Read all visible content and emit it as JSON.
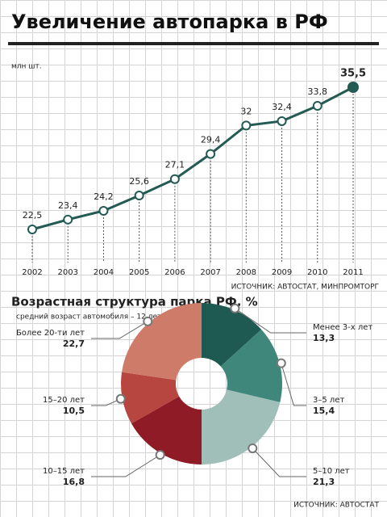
{
  "chart_data": [
    {
      "type": "line",
      "title": "Увеличение автопарка в РФ",
      "y_label": "млн шт.",
      "categories": [
        "2002",
        "2003",
        "2004",
        "2005",
        "2006",
        "2007",
        "2008",
        "2009",
        "2010",
        "2011"
      ],
      "values": [
        22.5,
        23.4,
        24.2,
        25.6,
        27.1,
        29.4,
        32,
        32.4,
        33.8,
        35.5
      ],
      "value_labels": [
        "22,5",
        "23,4",
        "24,2",
        "25,6",
        "27,1",
        "29,4",
        "32",
        "32,4",
        "33,8",
        "35,5"
      ],
      "color": "#235a53",
      "source": "ИСТОЧНИК: АВТОСТАТ, МИНПРОМТОРГ"
    },
    {
      "type": "pie",
      "title": "Возрастная структура парка РФ, %",
      "subtitle": "средний возраст автомобиля – 12 лет",
      "categories": [
        "Менее 3-х лет",
        "3–5 лет",
        "5–10 лет",
        "10–15 лет",
        "15–20 лет",
        "Более 20-ти лет"
      ],
      "values": [
        13.3,
        15.4,
        21.3,
        16.8,
        10.5,
        22.7
      ],
      "value_labels": [
        "13,3",
        "15,4",
        "21,3",
        "16,8",
        "10,5",
        "22,7"
      ],
      "colors": [
        "#1f5a52",
        "#3f867b",
        "#9fbfb8",
        "#8f1b26",
        "#b6463f",
        "#cf7b69"
      ],
      "source": "ИСТОЧНИК: АВТОСТАТ"
    }
  ]
}
